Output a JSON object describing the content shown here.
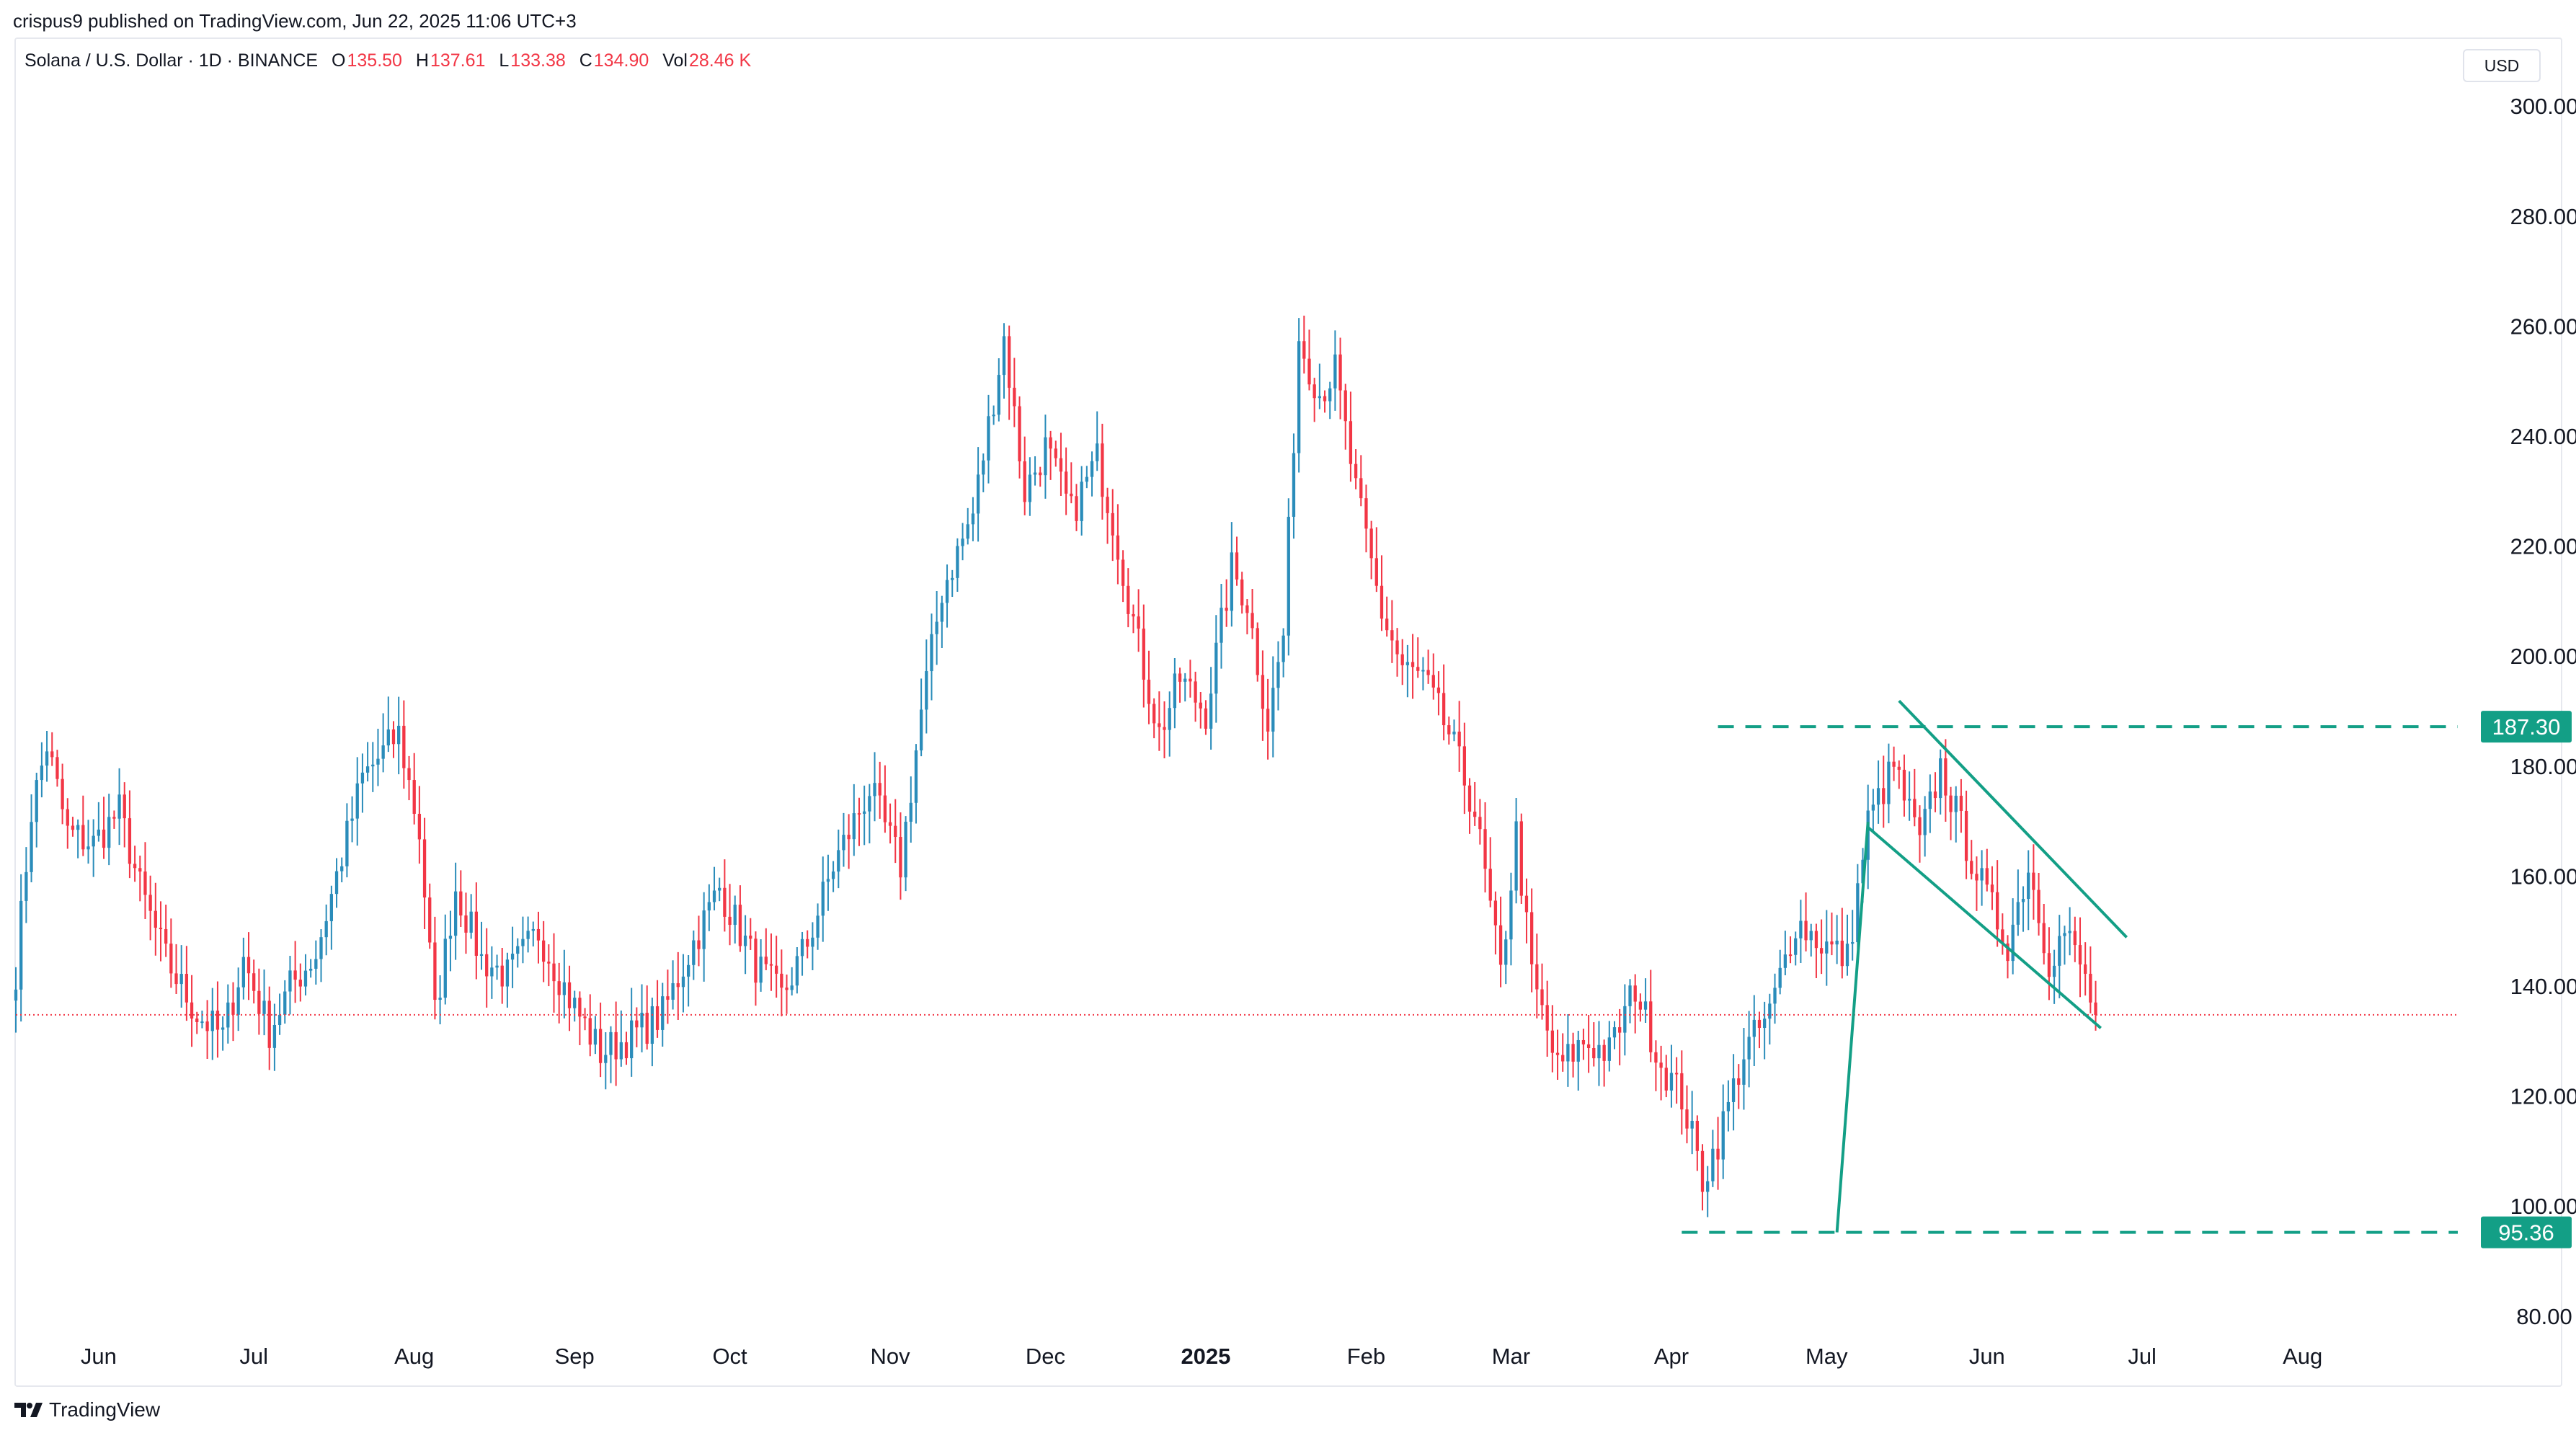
{
  "header": {
    "publisher": "crispus9 published on TradingView.com, Jun 22, 2025 11:06 UTC+3"
  },
  "legend": {
    "symbol": "Solana / U.S. Dollar · 1D · BINANCE",
    "o_label": "O",
    "o_value": "135.50",
    "h_label": "H",
    "h_value": "137.61",
    "l_label": "L",
    "l_value": "133.38",
    "c_label": "C",
    "c_value": "134.90",
    "vol_label": "Vol",
    "vol_value": "28.46 K"
  },
  "currency_button": "USD",
  "brand": {
    "name": "TradingView"
  },
  "colors": {
    "up": "#2a8cba",
    "down": "#f23645",
    "annotation": "#139f86",
    "last_price": "#f23645"
  },
  "chart_data": {
    "type": "candlestick",
    "symbol": "SOLUSD",
    "interval": "1D",
    "y_range": [
      75,
      305
    ],
    "y_ticks": [
      80,
      100,
      120,
      140,
      160,
      180,
      200,
      220,
      240,
      260,
      280,
      300
    ],
    "y_tick_labels": [
      "80.00",
      "100.00",
      "120.00",
      "140.00",
      "160.00",
      "180.00",
      "200.00",
      "220.00",
      "240.00",
      "260.00",
      "280.00",
      "300.00"
    ],
    "x_range": [
      "2024-05-16",
      "2025-08-31"
    ],
    "x_ticks": [
      {
        "date": "2024-06-01",
        "label": "Jun"
      },
      {
        "date": "2024-07-01",
        "label": "Jul"
      },
      {
        "date": "2024-08-01",
        "label": "Aug"
      },
      {
        "date": "2024-09-01",
        "label": "Sep"
      },
      {
        "date": "2024-10-01",
        "label": "Oct"
      },
      {
        "date": "2024-11-01",
        "label": "Nov"
      },
      {
        "date": "2024-12-01",
        "label": "Dec"
      },
      {
        "date": "2025-01-01",
        "label": "2025",
        "bold": true
      },
      {
        "date": "2025-02-01",
        "label": "Feb"
      },
      {
        "date": "2025-03-01",
        "label": "Mar"
      },
      {
        "date": "2025-04-01",
        "label": "Apr"
      },
      {
        "date": "2025-05-01",
        "label": "May"
      },
      {
        "date": "2025-06-01",
        "label": "Jun"
      },
      {
        "date": "2025-07-01",
        "label": "Jul"
      },
      {
        "date": "2025-08-01",
        "label": "Aug"
      }
    ],
    "last_price": 134.9,
    "waypoints": [
      [
        "2024-05-16",
        143
      ],
      [
        "2024-05-19",
        172
      ],
      [
        "2024-05-22",
        184
      ],
      [
        "2024-05-26",
        168
      ],
      [
        "2024-05-31",
        166
      ],
      [
        "2024-06-05",
        172
      ],
      [
        "2024-06-09",
        158
      ],
      [
        "2024-06-14",
        145
      ],
      [
        "2024-06-20",
        135
      ],
      [
        "2024-06-25",
        131
      ],
      [
        "2024-06-29",
        145
      ],
      [
        "2024-07-04",
        132
      ],
      [
        "2024-07-08",
        140
      ],
      [
        "2024-07-13",
        146
      ],
      [
        "2024-07-22",
        178
      ],
      [
        "2024-07-29",
        186
      ],
      [
        "2024-08-02",
        168
      ],
      [
        "2024-08-05",
        135
      ],
      [
        "2024-08-09",
        158
      ],
      [
        "2024-08-14",
        145
      ],
      [
        "2024-08-19",
        142
      ],
      [
        "2024-08-25",
        150
      ],
      [
        "2024-08-31",
        138
      ],
      [
        "2024-09-06",
        128
      ],
      [
        "2024-09-12",
        131
      ],
      [
        "2024-09-18",
        135
      ],
      [
        "2024-09-23",
        146
      ],
      [
        "2024-09-29",
        158
      ],
      [
        "2024-10-06",
        144
      ],
      [
        "2024-10-11",
        138
      ],
      [
        "2024-10-16",
        148
      ],
      [
        "2024-10-21",
        162
      ],
      [
        "2024-10-28",
        176
      ],
      [
        "2024-11-03",
        162
      ],
      [
        "2024-11-07",
        190
      ],
      [
        "2024-11-11",
        212
      ],
      [
        "2024-11-17",
        226
      ],
      [
        "2024-11-23",
        258
      ],
      [
        "2024-11-27",
        230
      ],
      [
        "2024-12-01",
        238
      ],
      [
        "2024-12-06",
        226
      ],
      [
        "2024-12-11",
        236
      ],
      [
        "2024-12-14",
        225
      ],
      [
        "2024-12-19",
        202
      ],
      [
        "2024-12-23",
        186
      ],
      [
        "2024-12-27",
        196
      ],
      [
        "2025-01-01",
        190
      ],
      [
        "2025-01-06",
        216
      ],
      [
        "2025-01-09",
        210
      ],
      [
        "2025-01-13",
        188
      ],
      [
        "2025-01-16",
        204
      ],
      [
        "2025-01-19",
        258
      ],
      [
        "2025-01-23",
        248
      ],
      [
        "2025-01-26",
        252
      ],
      [
        "2025-01-30",
        230
      ],
      [
        "2025-02-04",
        208
      ],
      [
        "2025-02-08",
        198
      ],
      [
        "2025-02-12",
        196
      ],
      [
        "2025-02-17",
        186
      ],
      [
        "2025-02-22",
        172
      ],
      [
        "2025-02-27",
        142
      ],
      [
        "2025-03-02",
        168
      ],
      [
        "2025-03-05",
        142
      ],
      [
        "2025-03-10",
        125
      ],
      [
        "2025-03-15",
        130
      ],
      [
        "2025-03-20",
        128
      ],
      [
        "2025-03-25",
        140
      ],
      [
        "2025-03-30",
        126
      ],
      [
        "2025-04-03",
        120
      ],
      [
        "2025-04-07",
        105
      ],
      [
        "2025-04-10",
        112
      ],
      [
        "2025-04-15",
        128
      ],
      [
        "2025-04-20",
        135
      ],
      [
        "2025-04-25",
        152
      ],
      [
        "2025-04-30",
        148
      ],
      [
        "2025-05-05",
        145
      ],
      [
        "2025-05-09",
        170
      ],
      [
        "2025-05-14",
        180
      ],
      [
        "2025-05-19",
        166
      ],
      [
        "2025-05-23",
        180
      ],
      [
        "2025-05-28",
        166
      ],
      [
        "2025-06-01",
        156
      ],
      [
        "2025-06-05",
        148
      ],
      [
        "2025-06-09",
        162
      ],
      [
        "2025-06-13",
        145
      ],
      [
        "2025-06-16",
        150
      ],
      [
        "2025-06-19",
        144
      ],
      [
        "2025-06-22",
        134.9
      ]
    ],
    "annotations": [
      {
        "type": "horizontal-dashed",
        "value": 187.3,
        "from": "2025-04-10",
        "label": "187.30"
      },
      {
        "type": "horizontal-dashed",
        "value": 95.36,
        "from": "2025-04-03",
        "label": "95.36"
      },
      {
        "type": "trend-line",
        "name": "flagpole",
        "points": [
          [
            "2025-05-03",
            95.36
          ],
          [
            "2025-05-09",
            170
          ]
        ]
      },
      {
        "type": "trend-line",
        "name": "channel-upper",
        "points": [
          [
            "2025-05-15",
            192
          ],
          [
            "2025-06-28",
            149
          ]
        ]
      },
      {
        "type": "trend-line",
        "name": "channel-lower",
        "points": [
          [
            "2025-05-09",
            169
          ],
          [
            "2025-06-23",
            132.5
          ]
        ]
      }
    ]
  }
}
